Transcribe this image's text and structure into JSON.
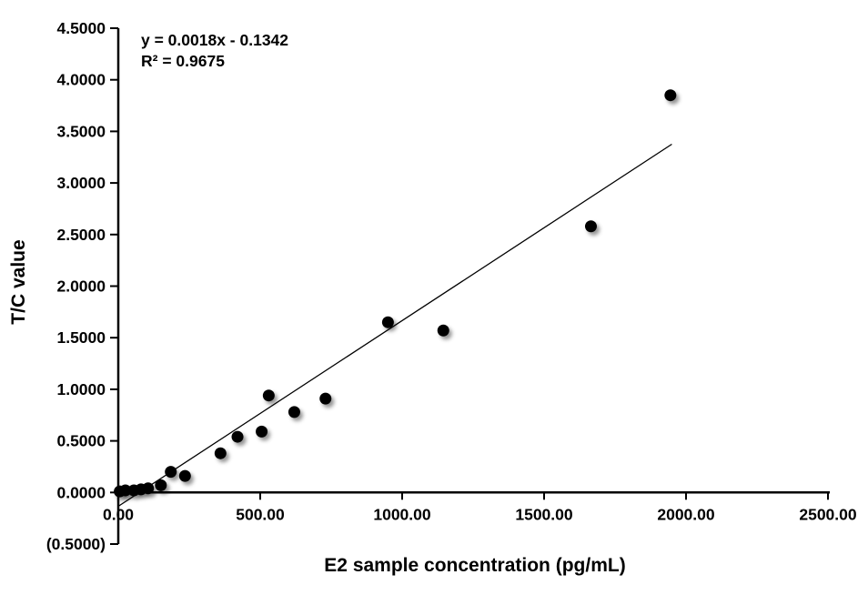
{
  "chart_data": {
    "type": "scatter",
    "title": "",
    "xlabel": "E2 sample concentration (pg/mL)",
    "ylabel": "T/C value",
    "annotation": {
      "equation": "y = 0.0018x - 0.1342",
      "r_squared": "R² = 0.9675"
    },
    "xlim": [
      0,
      2500
    ],
    "ylim": [
      -0.5,
      4.5
    ],
    "grid": false,
    "legend": "none",
    "x_ticks": [
      {
        "value": 0,
        "label": "0.00"
      },
      {
        "value": 500,
        "label": "500.00"
      },
      {
        "value": 1000,
        "label": "1000.00"
      },
      {
        "value": 1500,
        "label": "1500.00"
      },
      {
        "value": 2000,
        "label": "2000.00"
      },
      {
        "value": 2500,
        "label": "2500.00"
      }
    ],
    "y_ticks": [
      {
        "value": -0.5,
        "label": "(0.5000)",
        "color": "#ff0000"
      },
      {
        "value": 0.0,
        "label": "0.0000",
        "color": "#000000"
      },
      {
        "value": 0.5,
        "label": "0.5000",
        "color": "#000000"
      },
      {
        "value": 1.0,
        "label": "1.0000",
        "color": "#000000"
      },
      {
        "value": 1.5,
        "label": "1.5000",
        "color": "#000000"
      },
      {
        "value": 2.0,
        "label": "2.0000",
        "color": "#000000"
      },
      {
        "value": 2.5,
        "label": "2.5000",
        "color": "#000000"
      },
      {
        "value": 3.0,
        "label": "3.0000",
        "color": "#000000"
      },
      {
        "value": 3.5,
        "label": "3.5000",
        "color": "#000000"
      },
      {
        "value": 4.0,
        "label": "4.0000",
        "color": "#000000"
      },
      {
        "value": 4.5,
        "label": "4.5000",
        "color": "#000000"
      }
    ],
    "points": [
      {
        "x": 5,
        "y": 0.01
      },
      {
        "x": 25,
        "y": 0.02
      },
      {
        "x": 55,
        "y": 0.02
      },
      {
        "x": 80,
        "y": 0.03
      },
      {
        "x": 105,
        "y": 0.04
      },
      {
        "x": 150,
        "y": 0.07
      },
      {
        "x": 185,
        "y": 0.2
      },
      {
        "x": 235,
        "y": 0.16
      },
      {
        "x": 360,
        "y": 0.38
      },
      {
        "x": 420,
        "y": 0.54
      },
      {
        "x": 505,
        "y": 0.59
      },
      {
        "x": 530,
        "y": 0.94
      },
      {
        "x": 620,
        "y": 0.78
      },
      {
        "x": 730,
        "y": 0.91
      },
      {
        "x": 950,
        "y": 1.65
      },
      {
        "x": 1145,
        "y": 1.57
      },
      {
        "x": 1665,
        "y": 2.58
      },
      {
        "x": 1945,
        "y": 3.85
      }
    ],
    "trendline": {
      "slope": 0.0018,
      "intercept": -0.1342,
      "x_start": 0,
      "x_end": 1950,
      "color": "#000000"
    },
    "marker": {
      "color": "#000000",
      "radius": 6.5
    },
    "colors": {
      "axis": "#000000",
      "negative_tick": "#ff0000",
      "background": "#ffffff"
    }
  }
}
